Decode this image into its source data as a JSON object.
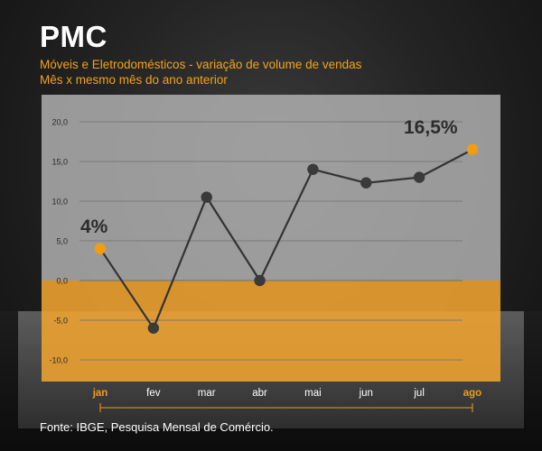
{
  "header": {
    "title": "PMC",
    "subtitle_line1": "Móveis e Eletrodomésticos - variação de volume de vendas",
    "subtitle_line2": "Mês x mesmo mês do ano anterior"
  },
  "footer": {
    "source": "Fonte: IBGE, Pesquisa Mensal de Comércio."
  },
  "colors": {
    "accent": "#f39c12",
    "line": "#333333",
    "marker": "#3a3a3a",
    "panel_gray": "#a9a9a9",
    "panel_orange": "#f0a430"
  },
  "chart_data": {
    "type": "line",
    "categories": [
      "jan",
      "fev",
      "mar",
      "abr",
      "mai",
      "jun",
      "jul",
      "ago"
    ],
    "series": [
      {
        "values": [
          4.0,
          -6.0,
          10.5,
          0.0,
          14.0,
          12.3,
          13.0,
          16.5
        ]
      }
    ],
    "ylim": [
      -10,
      20
    ],
    "yticks": [
      20,
      15,
      10,
      5,
      0,
      -5,
      -10
    ],
    "ytick_labels": [
      "20,0",
      "15,0",
      "10,0",
      "5,0",
      "0,0",
      "-5,0",
      "-10,0"
    ],
    "grid": true,
    "highlighted_categories": [
      "jan",
      "ago"
    ],
    "annotations": [
      {
        "category": "jan",
        "text": "4%"
      },
      {
        "category": "ago",
        "text": "16,5%"
      }
    ]
  }
}
